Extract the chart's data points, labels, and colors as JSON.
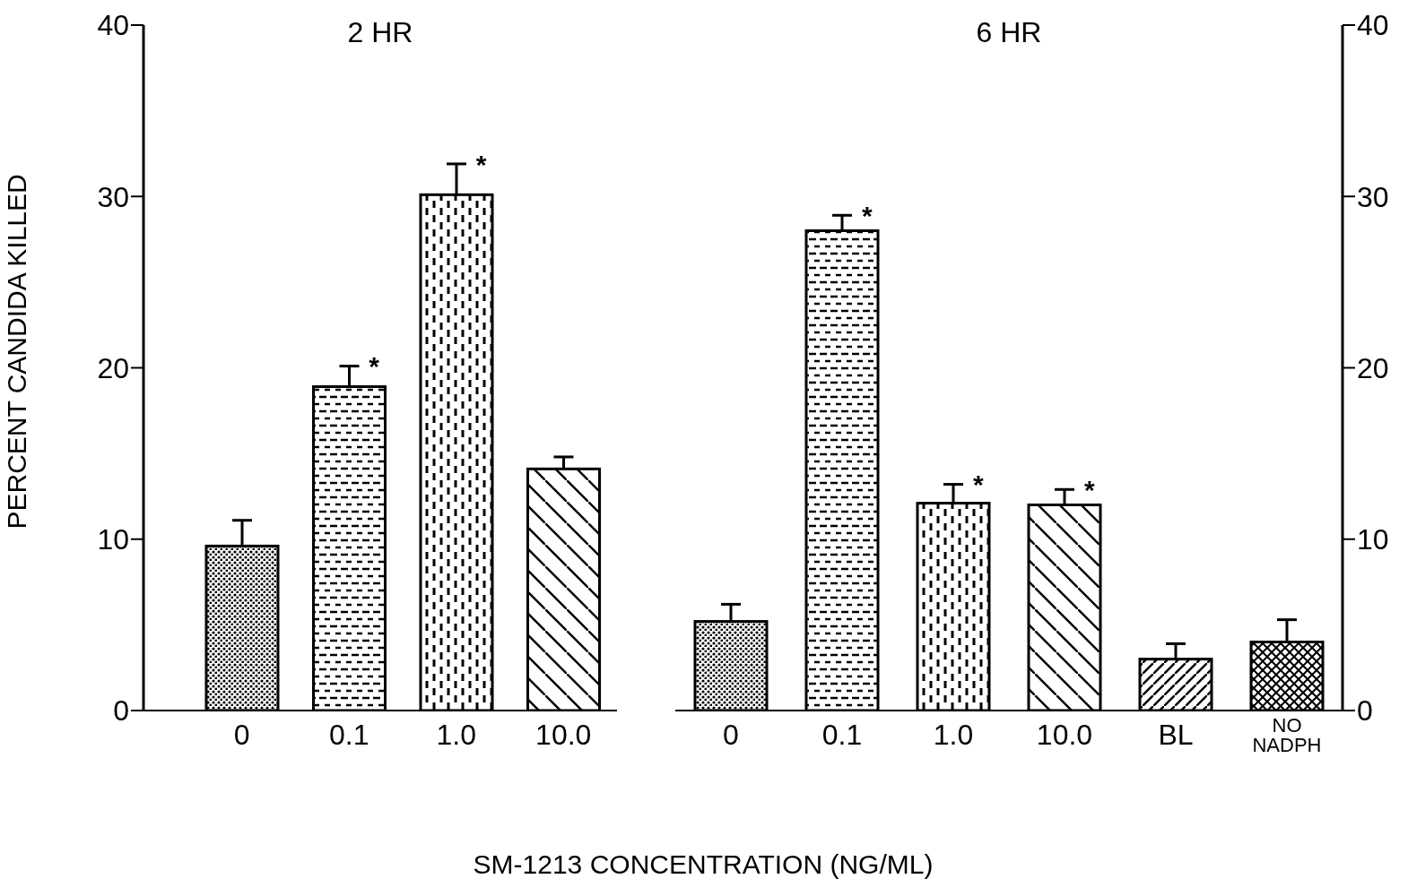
{
  "chart_data": [
    {
      "type": "bar",
      "title": "2 HR",
      "ylabel": "PERCENT CANDIDA KILLED",
      "categories": [
        "0",
        "0.1",
        "1.0",
        "10.0"
      ],
      "series": [
        {
          "color": "#000000",
          "values": [
            9.6,
            18.9,
            30.1,
            14.1
          ],
          "errors": [
            [
              9.6,
              11.1
            ],
            [
              18.9,
              20.1
            ],
            [
              30.1,
              31.9
            ],
            [
              14.1,
              14.8
            ]
          ]
        }
      ],
      "ylim": [
        0,
        40
      ],
      "yticks": [
        0,
        10,
        20,
        30,
        40
      ],
      "grid": false,
      "legend": false,
      "annotations": [
        {
          "text": "*",
          "x": "0.1",
          "y": 20.1
        },
        {
          "text": "*",
          "x": "1.0",
          "y": 31.9
        }
      ]
    },
    {
      "type": "bar",
      "title": "6 HR",
      "xlabel": "SM-1213 CONCENTRATION (NG/ML)",
      "categories": [
        "0",
        "0.1",
        "1.0",
        "10.0",
        "BL",
        "NO NADPH"
      ],
      "series": [
        {
          "color": "#000000",
          "values": [
            5.2,
            28.0,
            12.1,
            12.0,
            3.0,
            4.0
          ],
          "errors": [
            [
              5.2,
              6.2
            ],
            [
              28.0,
              28.9
            ],
            [
              12.1,
              13.2
            ],
            [
              12.0,
              12.9
            ],
            [
              3.0,
              3.9
            ],
            [
              4.0,
              5.3
            ]
          ]
        }
      ],
      "ylim": [
        0,
        40
      ],
      "yticks": [
        0,
        10,
        20,
        30,
        40
      ],
      "grid": false,
      "legend": false,
      "annotations": [
        {
          "text": "*",
          "x": "0.1",
          "y": 28.9
        },
        {
          "text": "*",
          "x": "1.0",
          "y": 13.2
        },
        {
          "text": "*",
          "x": "10.0",
          "y": 12.9
        }
      ]
    }
  ]
}
